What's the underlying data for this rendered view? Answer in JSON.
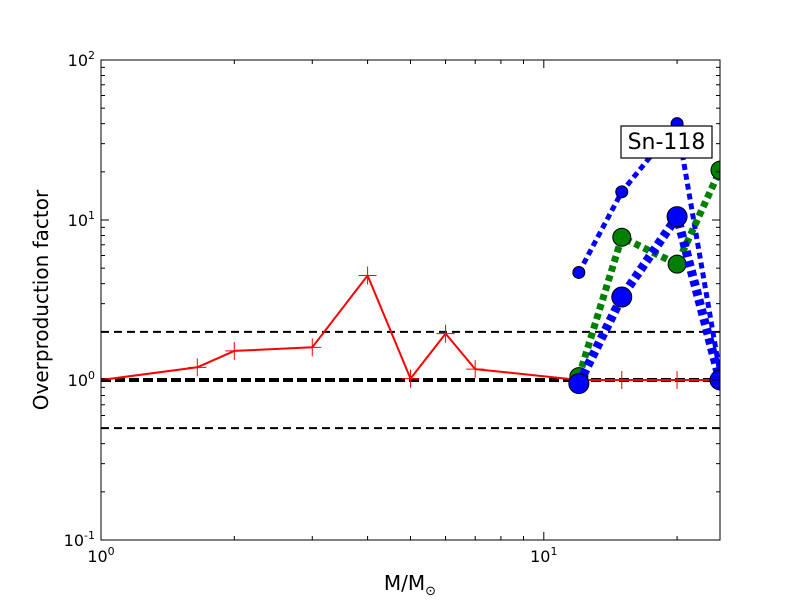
{
  "chart_data": {
    "type": "line",
    "xscale": "log",
    "yscale": "log",
    "xlim": [
      1,
      25
    ],
    "ylim": [
      0.1,
      100
    ],
    "grid": false,
    "xlabel": "M/M",
    "xlabel_subscript": "⊙",
    "ylabel": "Overproduction factor",
    "annotation": "Sn-118",
    "x_ticks": [
      {
        "value": 1,
        "base": "10",
        "exp": "0"
      },
      {
        "value": 10,
        "base": "10",
        "exp": "1"
      }
    ],
    "y_ticks": [
      {
        "value": 0.1,
        "base": "10",
        "exp": "-1"
      },
      {
        "value": 1,
        "base": "10",
        "exp": "0"
      },
      {
        "value": 10,
        "base": "10",
        "exp": "1"
      },
      {
        "value": 100,
        "base": "10",
        "exp": "2"
      }
    ],
    "reference_lines": [
      {
        "y": 2,
        "style": "dashed",
        "weight": "thin"
      },
      {
        "y": 1,
        "style": "dashed",
        "weight": "thick"
      },
      {
        "y": 0.5,
        "style": "dashed",
        "weight": "thin"
      }
    ],
    "series": [
      {
        "color": "#ff0000",
        "line": "solid",
        "marker": "plus",
        "marker_size": "small",
        "x": [
          1,
          1.65,
          2,
          3,
          4,
          5,
          6,
          7,
          12,
          15,
          20,
          25
        ],
        "y": [
          1.0,
          1.2,
          1.52,
          1.6,
          4.5,
          1.02,
          1.95,
          1.17,
          1.0,
          1.0,
          1.0,
          1.0
        ]
      },
      {
        "color": "#0000ff",
        "line": "dotted",
        "marker": "circle",
        "marker_size": "small",
        "x": [
          12,
          15,
          20,
          25
        ],
        "y": [
          4.7,
          15,
          40,
          1.1
        ]
      },
      {
        "color": "#008000",
        "line": "dotted",
        "marker": "circle",
        "marker_size": "medium",
        "x": [
          12,
          15,
          20,
          25
        ],
        "y": [
          1.05,
          7.8,
          5.3,
          20.5
        ]
      },
      {
        "color": "#0000ff",
        "line": "dotted",
        "marker": "circle",
        "marker_size": "large",
        "x": [
          12,
          15,
          20,
          25
        ],
        "y": [
          0.95,
          3.3,
          10.5,
          1.0
        ]
      }
    ]
  }
}
